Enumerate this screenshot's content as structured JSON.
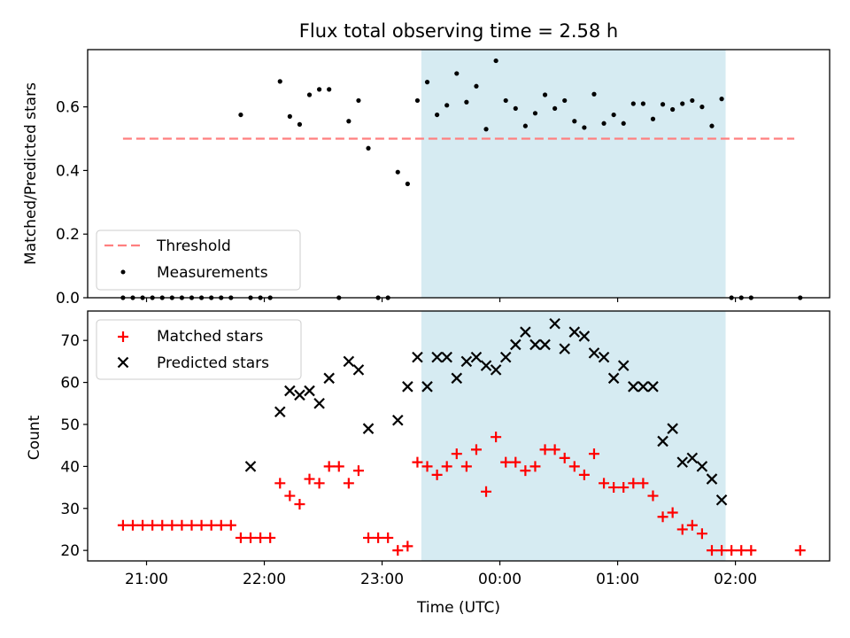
{
  "title": "Flux total observing time = 2.58 h",
  "colors": {
    "threshold": "#ff7f7f",
    "measurement": "#000000",
    "matched": "#ff0000",
    "predicted": "#000000",
    "shade": "#add8e6"
  },
  "chart_data": [
    {
      "type": "scatter",
      "ylabel": "Matched/Predicted stars",
      "ylim": [
        0,
        0.78
      ],
      "yticks": [
        0.0,
        0.2,
        0.4,
        0.6
      ],
      "ytick_labels": [
        "0.0",
        "0.2",
        "0.4",
        "0.6"
      ],
      "legend": {
        "placement": "lower-left",
        "entries": [
          {
            "label": "Threshold",
            "kind": "dashed-line"
          },
          {
            "label": "Measurements",
            "kind": "dot"
          }
        ]
      },
      "threshold": {
        "value": 0.5,
        "x_start": "20:48",
        "x_end": "02:30"
      },
      "shaded_interval": [
        "23:20",
        "01:55"
      ],
      "measurements": {
        "x": [
          "20:48",
          "20:53",
          "20:58",
          "21:03",
          "21:08",
          "21:13",
          "21:18",
          "21:23",
          "21:28",
          "21:33",
          "21:38",
          "21:43",
          "21:48",
          "21:53",
          "21:58",
          "22:03",
          "22:08",
          "22:13",
          "22:18",
          "22:23",
          "22:28",
          "22:33",
          "22:38",
          "22:43",
          "22:48",
          "22:53",
          "22:58",
          "23:03",
          "23:08",
          "23:13",
          "23:18",
          "23:23",
          "23:28",
          "23:33",
          "23:38",
          "23:43",
          "23:48",
          "23:53",
          "23:58",
          "00:03",
          "00:08",
          "00:13",
          "00:18",
          "00:23",
          "00:28",
          "00:33",
          "00:38",
          "00:43",
          "00:48",
          "00:53",
          "00:58",
          "01:03",
          "01:08",
          "01:13",
          "01:18",
          "01:23",
          "01:28",
          "01:33",
          "01:38",
          "01:43",
          "01:48",
          "01:53",
          "01:58",
          "02:03",
          "02:08",
          "02:33"
        ],
        "y": [
          0,
          0,
          0,
          0,
          0,
          0,
          0,
          0,
          0,
          0,
          0,
          0,
          0.575,
          0,
          0,
          0,
          0.68,
          0.57,
          0.545,
          0.638,
          0.655,
          0.655,
          0,
          0.555,
          0.62,
          0.47,
          0,
          0,
          0.395,
          0.358,
          0.62,
          0.678,
          0.575,
          0.605,
          0.705,
          0.615,
          0.665,
          0.53,
          0.745,
          0.62,
          0.595,
          0.54,
          0.58,
          0.638,
          0.595,
          0.62,
          0.555,
          0.535,
          0.64,
          0.548,
          0.575,
          0.548,
          0.61,
          0.61,
          0.562,
          0.608,
          0.592,
          0.61,
          0.62,
          0.6,
          0.54,
          0.625,
          0,
          0,
          0,
          0
        ]
      }
    },
    {
      "type": "scatter",
      "xlabel": "Time (UTC)",
      "ylabel": "Count",
      "ylim": [
        17.5,
        77
      ],
      "yticks": [
        20,
        30,
        40,
        50,
        60,
        70
      ],
      "xticks": [
        "21:00",
        "22:00",
        "23:00",
        "00:00",
        "01:00",
        "02:00"
      ],
      "shaded_interval": [
        "23:20",
        "01:55"
      ],
      "legend": {
        "placement": "top-left",
        "entries": [
          {
            "label": "Matched stars",
            "kind": "plus"
          },
          {
            "label": "Predicted stars",
            "kind": "x"
          }
        ]
      },
      "series": [
        {
          "name": "Matched stars",
          "marker": "plus",
          "x": [
            "20:48",
            "20:53",
            "20:58",
            "21:03",
            "21:08",
            "21:13",
            "21:18",
            "21:23",
            "21:28",
            "21:33",
            "21:38",
            "21:43",
            "21:48",
            "21:53",
            "21:58",
            "22:03",
            "22:08",
            "22:13",
            "22:18",
            "22:23",
            "22:28",
            "22:33",
            "22:38",
            "22:43",
            "22:48",
            "22:53",
            "22:58",
            "23:03",
            "23:08",
            "23:13",
            "23:18",
            "23:23",
            "23:28",
            "23:33",
            "23:38",
            "23:43",
            "23:48",
            "23:53",
            "23:58",
            "00:03",
            "00:08",
            "00:13",
            "00:18",
            "00:23",
            "00:28",
            "00:33",
            "00:38",
            "00:43",
            "00:48",
            "00:53",
            "00:58",
            "01:03",
            "01:08",
            "01:13",
            "01:18",
            "01:23",
            "01:28",
            "01:33",
            "01:38",
            "01:43",
            "01:48",
            "01:53",
            "01:58",
            "02:03",
            "02:08",
            "02:33"
          ],
          "y": [
            26,
            26,
            26,
            26,
            26,
            26,
            26,
            26,
            26,
            26,
            26,
            26,
            23,
            23,
            23,
            23,
            36,
            33,
            31,
            37,
            36,
            40,
            40,
            36,
            39,
            23,
            23,
            23,
            20,
            21,
            41,
            40,
            38,
            40,
            43,
            40,
            44,
            34,
            47,
            41,
            41,
            39,
            40,
            44,
            44,
            42,
            40,
            38,
            43,
            36,
            35,
            35,
            36,
            36,
            33,
            28,
            29,
            25,
            26,
            24,
            20,
            20,
            20,
            20,
            20,
            20
          ]
        },
        {
          "name": "Predicted stars",
          "marker": "x",
          "x": [
            "21:53",
            "22:08",
            "22:13",
            "22:18",
            "22:23",
            "22:28",
            "22:33",
            "22:43",
            "22:48",
            "22:53",
            "23:08",
            "23:13",
            "23:18",
            "23:23",
            "23:28",
            "23:33",
            "23:38",
            "23:43",
            "23:48",
            "23:53",
            "23:58",
            "00:03",
            "00:08",
            "00:13",
            "00:18",
            "00:23",
            "00:28",
            "00:33",
            "00:38",
            "00:43",
            "00:48",
            "00:53",
            "00:58",
            "01:03",
            "01:08",
            "01:13",
            "01:18",
            "01:23",
            "01:28",
            "01:33",
            "01:38",
            "01:43",
            "01:48",
            "01:53"
          ],
          "y": [
            40,
            53,
            58,
            57,
            58,
            55,
            61,
            65,
            63,
            49,
            51,
            59,
            66,
            59,
            66,
            66,
            61,
            65,
            66,
            64,
            63,
            66,
            69,
            72,
            69,
            69,
            74,
            68,
            72,
            71,
            67,
            66,
            61,
            64,
            59,
            59,
            59,
            46,
            49,
            41,
            42,
            40,
            37,
            32
          ]
        }
      ]
    }
  ]
}
